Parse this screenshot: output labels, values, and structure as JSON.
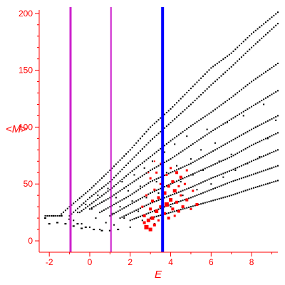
{
  "chart_data": {
    "type": "scatter",
    "title": "",
    "xlabel": "E",
    "ylabel": "<M>",
    "xlim": [
      -2.5,
      9.3
    ],
    "ylim": [
      -10,
      203
    ],
    "x_ticks": [
      -2,
      0,
      2,
      4,
      6,
      8
    ],
    "y_ticks": [
      0,
      50,
      100,
      150,
      200
    ],
    "grid": false,
    "colors": {
      "axis": "#ff0000",
      "points": "#000000",
      "highlight": "#ff0000",
      "vline_thin": "#cc22cc",
      "vline_thick": "#0000ff"
    },
    "vertical_lines": [
      {
        "x": -0.95,
        "color": "#cc22cc",
        "weight": "medium"
      },
      {
        "x": 1.05,
        "color": "#cc22cc",
        "weight": "thin"
      },
      {
        "x": 3.6,
        "color": "#0000ff",
        "weight": "thick"
      }
    ],
    "bands": [
      {
        "x": [
          -2.2,
          -1.5,
          -1.0,
          0.0,
          1.0,
          2.0,
          3.0,
          4.0,
          5.0,
          6.0,
          7.0,
          8.0,
          9.3
        ],
        "y": [
          22,
          22,
          30,
          45,
          62,
          80,
          100,
          116,
          134,
          152,
          165,
          182,
          201
        ]
      },
      {
        "x": [
          -1.0,
          0.0,
          1.0,
          2.0,
          3.0,
          4.0,
          5.0,
          6.0,
          7.0,
          8.0,
          9.3
        ],
        "y": [
          22,
          38,
          52,
          70,
          88,
          104,
          120,
          137,
          153,
          170,
          191
        ]
      },
      {
        "x": [
          -0.5,
          1.0,
          2.0,
          3.0,
          4.0,
          5.0,
          6.0,
          7.0,
          8.0,
          9.3
        ],
        "y": [
          25,
          45,
          60,
          74,
          88,
          101,
          113,
          126,
          140,
          156
        ]
      },
      {
        "x": [
          0.0,
          1.0,
          2.0,
          3.0,
          4.0,
          5.0,
          6.0,
          7.0,
          8.0,
          9.3
        ],
        "y": [
          28,
          38,
          50,
          62,
          72,
          84,
          96,
          107,
          118,
          132
        ]
      },
      {
        "x": [
          0.5,
          2.0,
          3.0,
          4.0,
          5.0,
          6.0,
          7.0,
          8.0,
          9.3
        ],
        "y": [
          25,
          40,
          52,
          60,
          68,
          78,
          88,
          98,
          110
        ]
      },
      {
        "x": [
          1.0,
          2.0,
          3.0,
          4.0,
          5.0,
          6.0,
          7.0,
          8.0,
          9.3
        ],
        "y": [
          22,
          32,
          42,
          50,
          58,
          66,
          74,
          84,
          95
        ]
      },
      {
        "x": [
          1.5,
          3.0,
          4.0,
          5.0,
          6.0,
          7.0,
          8.0,
          9.3
        ],
        "y": [
          20,
          33,
          40,
          47,
          55,
          62,
          70,
          80
        ]
      },
      {
        "x": [
          2.0,
          3.0,
          4.0,
          5.0,
          6.0,
          7.0,
          8.0,
          9.3
        ],
        "y": [
          18,
          25,
          32,
          38,
          45,
          52,
          58,
          66
        ]
      },
      {
        "x": [
          3.0,
          4.0,
          5.0,
          6.0,
          7.0,
          8.0,
          9.3
        ],
        "y": [
          20,
          25,
          30,
          35,
          40,
          46,
          53
        ]
      }
    ],
    "scatter_cloud": [
      {
        "x": -0.8,
        "y": 18
      },
      {
        "x": -0.6,
        "y": 25
      },
      {
        "x": -0.4,
        "y": 15
      },
      {
        "x": -0.2,
        "y": 32
      },
      {
        "x": 0.0,
        "y": 12
      },
      {
        "x": 0.1,
        "y": 28
      },
      {
        "x": 0.3,
        "y": 20
      },
      {
        "x": 0.4,
        "y": 40
      },
      {
        "x": 0.5,
        "y": 10
      },
      {
        "x": 0.6,
        "y": 34
      },
      {
        "x": 0.8,
        "y": 16
      },
      {
        "x": 0.9,
        "y": 46
      },
      {
        "x": 1.1,
        "y": 24
      },
      {
        "x": 1.2,
        "y": 14
      },
      {
        "x": 1.3,
        "y": 38
      },
      {
        "x": 1.5,
        "y": 30
      },
      {
        "x": 1.6,
        "y": 52
      },
      {
        "x": 1.7,
        "y": 20
      },
      {
        "x": 1.9,
        "y": 44
      },
      {
        "x": 2.0,
        "y": 12
      },
      {
        "x": 2.1,
        "y": 35
      },
      {
        "x": 2.2,
        "y": 58
      },
      {
        "x": 2.4,
        "y": 26
      },
      {
        "x": 2.5,
        "y": 48
      },
      {
        "x": 2.6,
        "y": 18
      },
      {
        "x": 2.7,
        "y": 64
      },
      {
        "x": 2.8,
        "y": 38
      },
      {
        "x": 3.0,
        "y": 28
      },
      {
        "x": 3.1,
        "y": 70
      },
      {
        "x": 3.2,
        "y": 15
      },
      {
        "x": 3.3,
        "y": 52
      },
      {
        "x": 3.4,
        "y": 42
      },
      {
        "x": 3.7,
        "y": 78
      },
      {
        "x": 3.8,
        "y": 60
      },
      {
        "x": 3.9,
        "y": 48
      },
      {
        "x": 4.0,
        "y": 30
      },
      {
        "x": 4.2,
        "y": 85
      },
      {
        "x": 4.3,
        "y": 66
      },
      {
        "x": 4.5,
        "y": 52
      },
      {
        "x": 4.6,
        "y": 40
      },
      {
        "x": 4.8,
        "y": 92
      },
      {
        "x": 5.0,
        "y": 72
      },
      {
        "x": 5.1,
        "y": 58
      },
      {
        "x": 5.3,
        "y": 45
      },
      {
        "x": 5.5,
        "y": 80
      },
      {
        "x": 5.6,
        "y": 62
      },
      {
        "x": 5.8,
        "y": 98
      },
      {
        "x": 6.0,
        "y": 50
      },
      {
        "x": 6.2,
        "y": 86
      },
      {
        "x": 6.4,
        "y": 70
      },
      {
        "x": 6.6,
        "y": 56
      },
      {
        "x": 6.8,
        "y": 104
      },
      {
        "x": 7.0,
        "y": 76
      },
      {
        "x": 7.2,
        "y": 62
      },
      {
        "x": 7.4,
        "y": 92
      },
      {
        "x": 7.6,
        "y": 110
      },
      {
        "x": 7.8,
        "y": 68
      },
      {
        "x": 8.0,
        "y": 84
      },
      {
        "x": 8.2,
        "y": 100
      },
      {
        "x": 8.4,
        "y": 74
      },
      {
        "x": 8.6,
        "y": 120
      },
      {
        "x": 8.8,
        "y": 90
      },
      {
        "x": 9.0,
        "y": 64
      },
      {
        "x": 9.2,
        "y": 106
      }
    ],
    "curve": [
      {
        "x": -2.2,
        "y": 20
      },
      {
        "x": -1.8,
        "y": 22
      },
      {
        "x": -1.4,
        "y": 22
      },
      {
        "x": -1.0,
        "y": 19
      },
      {
        "x": -0.6,
        "y": 15
      },
      {
        "x": -0.2,
        "y": 12
      },
      {
        "x": 0.2,
        "y": 10
      },
      {
        "x": 0.6,
        "y": 9
      },
      {
        "x": 1.0,
        "y": 9
      },
      {
        "x": 1.4,
        "y": 10
      },
      {
        "x": -2.0,
        "y": 15
      },
      {
        "x": -1.6,
        "y": 16
      },
      {
        "x": -1.2,
        "y": 15
      },
      {
        "x": -0.8,
        "y": 13
      },
      {
        "x": -0.4,
        "y": 11
      }
    ],
    "highlight_points": [
      {
        "x": 2.6,
        "y": 30,
        "s": 3
      },
      {
        "x": 2.7,
        "y": 22,
        "s": 4
      },
      {
        "x": 2.8,
        "y": 40,
        "s": 3
      },
      {
        "x": 2.8,
        "y": 12,
        "s": 6
      },
      {
        "x": 2.9,
        "y": 18,
        "s": 5
      },
      {
        "x": 3.0,
        "y": 28,
        "s": 4
      },
      {
        "x": 3.0,
        "y": 55,
        "s": 3
      },
      {
        "x": 3.1,
        "y": 20,
        "s": 5
      },
      {
        "x": 3.1,
        "y": 35,
        "s": 4
      },
      {
        "x": 3.2,
        "y": 45,
        "s": 3
      },
      {
        "x": 3.2,
        "y": 14,
        "s": 4
      },
      {
        "x": 3.3,
        "y": 26,
        "s": 5
      },
      {
        "x": 3.3,
        "y": 60,
        "s": 3
      },
      {
        "x": 3.4,
        "y": 38,
        "s": 4
      },
      {
        "x": 3.4,
        "y": 18,
        "s": 3
      },
      {
        "x": 3.5,
        "y": 30,
        "s": 4
      },
      {
        "x": 3.5,
        "y": 50,
        "s": 3
      },
      {
        "x": 3.7,
        "y": 24,
        "s": 4
      },
      {
        "x": 3.7,
        "y": 42,
        "s": 5
      },
      {
        "x": 3.8,
        "y": 32,
        "s": 6
      },
      {
        "x": 3.8,
        "y": 58,
        "s": 3
      },
      {
        "x": 3.9,
        "y": 20,
        "s": 4
      },
      {
        "x": 3.9,
        "y": 48,
        "s": 4
      },
      {
        "x": 4.0,
        "y": 36,
        "s": 5
      },
      {
        "x": 4.0,
        "y": 64,
        "s": 3
      },
      {
        "x": 4.1,
        "y": 28,
        "s": 4
      },
      {
        "x": 4.1,
        "y": 52,
        "s": 4
      },
      {
        "x": 4.2,
        "y": 44,
        "s": 5
      },
      {
        "x": 4.2,
        "y": 22,
        "s": 3
      },
      {
        "x": 4.3,
        "y": 60,
        "s": 4
      },
      {
        "x": 4.3,
        "y": 34,
        "s": 4
      },
      {
        "x": 4.4,
        "y": 48,
        "s": 3
      },
      {
        "x": 4.4,
        "y": 26,
        "s": 4
      },
      {
        "x": 4.5,
        "y": 56,
        "s": 4
      },
      {
        "x": 4.5,
        "y": 40,
        "s": 3
      },
      {
        "x": 4.6,
        "y": 30,
        "s": 4
      },
      {
        "x": 4.7,
        "y": 50,
        "s": 3
      },
      {
        "x": 4.8,
        "y": 36,
        "s": 4
      },
      {
        "x": 4.8,
        "y": 62,
        "s": 3
      },
      {
        "x": 5.0,
        "y": 28,
        "s": 3
      },
      {
        "x": 5.1,
        "y": 44,
        "s": 3
      },
      {
        "x": 5.3,
        "y": 32,
        "s": 4
      },
      {
        "x": 3.2,
        "y": 70,
        "s": 2
      },
      {
        "x": 3.5,
        "y": 68,
        "s": 2
      },
      {
        "x": 2.9,
        "y": 60,
        "s": 2
      },
      {
        "x": 3.0,
        "y": 10,
        "s": 5
      },
      {
        "x": 2.7,
        "y": 16,
        "s": 4
      }
    ]
  }
}
